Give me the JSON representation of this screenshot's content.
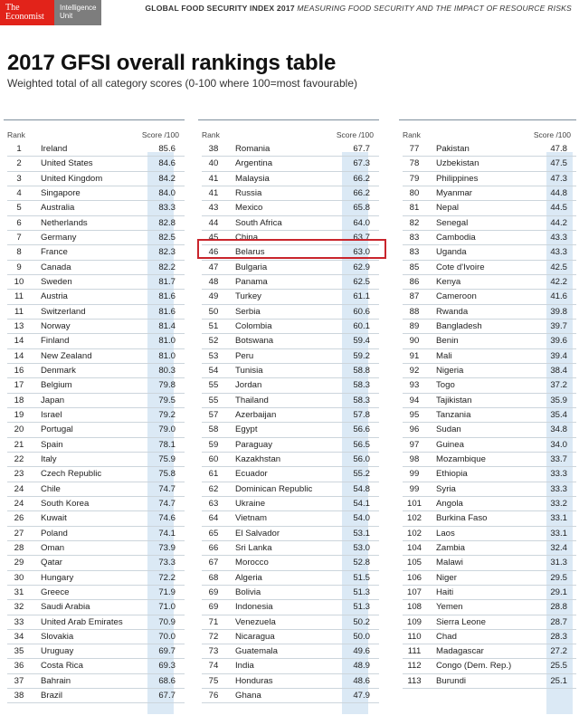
{
  "header": {
    "logo_primary_line1": "The",
    "logo_primary_line2": "Economist",
    "logo_secondary_line1": "Intelligence",
    "logo_secondary_line2": "Unit",
    "title_bold": "GLOBAL FOOD SECURITY INDEX 2017",
    "title_rest": "MEASURING FOOD SECURITY AND THE IMPACT OF RESOURCE RISKS"
  },
  "page_title": "2017 GFSI overall rankings table",
  "subtitle": "Weighted total of all category scores (0-100 where 100=most favourable)",
  "table_headers": {
    "rank": "Rank",
    "score": "Score /100"
  },
  "highlight_color": "#c9252c",
  "score_column_color": "#dbe9f5",
  "columns": [
    {
      "rows": [
        [
          "1",
          "Ireland",
          "85.6"
        ],
        [
          "2",
          "United States",
          "84.6"
        ],
        [
          "3",
          "United Kingdom",
          "84.2"
        ],
        [
          "4",
          "Singapore",
          "84.0"
        ],
        [
          "5",
          "Australia",
          "83.3"
        ],
        [
          "6",
          "Netherlands",
          "82.8"
        ],
        [
          "7",
          "Germany",
          "82.5"
        ],
        [
          "8",
          "France",
          "82.3"
        ],
        [
          "9",
          "Canada",
          "82.2"
        ],
        [
          "10",
          "Sweden",
          "81.7"
        ],
        [
          "11",
          "Austria",
          "81.6"
        ],
        [
          "11",
          "Switzerland",
          "81.6"
        ],
        [
          "13",
          "Norway",
          "81.4"
        ],
        [
          "14",
          "Finland",
          "81.0"
        ],
        [
          "14",
          "New Zealand",
          "81.0"
        ],
        [
          "16",
          "Denmark",
          "80.3"
        ],
        [
          "17",
          "Belgium",
          "79.8"
        ],
        [
          "18",
          "Japan",
          "79.5"
        ],
        [
          "19",
          "Israel",
          "79.2"
        ],
        [
          "20",
          "Portugal",
          "79.0"
        ],
        [
          "21",
          "Spain",
          "78.1"
        ],
        [
          "22",
          "Italy",
          "75.9"
        ],
        [
          "23",
          "Czech Republic",
          "75.8"
        ],
        [
          "24",
          "Chile",
          "74.7"
        ],
        [
          "24",
          "South Korea",
          "74.7"
        ],
        [
          "26",
          "Kuwait",
          "74.6"
        ],
        [
          "27",
          "Poland",
          "74.1"
        ],
        [
          "28",
          "Oman",
          "73.9"
        ],
        [
          "29",
          "Qatar",
          "73.3"
        ],
        [
          "30",
          "Hungary",
          "72.2"
        ],
        [
          "31",
          "Greece",
          "71.9"
        ],
        [
          "32",
          "Saudi Arabia",
          "71.0"
        ],
        [
          "33",
          "United Arab Emirates",
          "70.9"
        ],
        [
          "34",
          "Slovakia",
          "70.0"
        ],
        [
          "35",
          "Uruguay",
          "69.7"
        ],
        [
          "36",
          "Costa Rica",
          "69.3"
        ],
        [
          "37",
          "Bahrain",
          "68.6"
        ],
        [
          "38",
          "Brazil",
          "67.7"
        ]
      ]
    },
    {
      "rows": [
        [
          "38",
          "Romania",
          "67.7"
        ],
        [
          "40",
          "Argentina",
          "67.3"
        ],
        [
          "41",
          "Malaysia",
          "66.2"
        ],
        [
          "41",
          "Russia",
          "66.2"
        ],
        [
          "43",
          "Mexico",
          "65.8"
        ],
        [
          "44",
          "South Africa",
          "64.0"
        ],
        [
          "45",
          "China",
          "63.7"
        ],
        [
          "46",
          "Belarus",
          "63.0"
        ],
        [
          "47",
          "Bulgaria",
          "62.9"
        ],
        [
          "48",
          "Panama",
          "62.5"
        ],
        [
          "49",
          "Turkey",
          "61.1"
        ],
        [
          "50",
          "Serbia",
          "60.6"
        ],
        [
          "51",
          "Colombia",
          "60.1"
        ],
        [
          "52",
          "Botswana",
          "59.4"
        ],
        [
          "53",
          "Peru",
          "59.2"
        ],
        [
          "54",
          "Tunisia",
          "58.8"
        ],
        [
          "55",
          "Jordan",
          "58.3"
        ],
        [
          "55",
          "Thailand",
          "58.3"
        ],
        [
          "57",
          "Azerbaijan",
          "57.8"
        ],
        [
          "58",
          "Egypt",
          "56.6"
        ],
        [
          "59",
          "Paraguay",
          "56.5"
        ],
        [
          "60",
          "Kazakhstan",
          "56.0"
        ],
        [
          "61",
          "Ecuador",
          "55.2"
        ],
        [
          "62",
          "Dominican Republic",
          "54.8"
        ],
        [
          "63",
          "Ukraine",
          "54.1"
        ],
        [
          "64",
          "Vietnam",
          "54.0"
        ],
        [
          "65",
          "El Salvador",
          "53.1"
        ],
        [
          "66",
          "Sri Lanka",
          "53.0"
        ],
        [
          "67",
          "Morocco",
          "52.8"
        ],
        [
          "68",
          "Algeria",
          "51.5"
        ],
        [
          "69",
          "Bolivia",
          "51.3"
        ],
        [
          "69",
          "Indonesia",
          "51.3"
        ],
        [
          "71",
          "Venezuela",
          "50.2"
        ],
        [
          "72",
          "Nicaragua",
          "50.0"
        ],
        [
          "73",
          "Guatemala",
          "49.6"
        ],
        [
          "74",
          "India",
          "48.9"
        ],
        [
          "75",
          "Honduras",
          "48.6"
        ],
        [
          "76",
          "Ghana",
          "47.9"
        ]
      ]
    },
    {
      "rows": [
        [
          "77",
          "Pakistan",
          "47.8"
        ],
        [
          "78",
          "Uzbekistan",
          "47.5"
        ],
        [
          "79",
          "Philippines",
          "47.3"
        ],
        [
          "80",
          "Myanmar",
          "44.8"
        ],
        [
          "81",
          "Nepal",
          "44.5"
        ],
        [
          "82",
          "Senegal",
          "44.2"
        ],
        [
          "83",
          "Cambodia",
          "43.3"
        ],
        [
          "83",
          "Uganda",
          "43.3"
        ],
        [
          "85",
          "Cote d'Ivoire",
          "42.5"
        ],
        [
          "86",
          "Kenya",
          "42.2"
        ],
        [
          "87",
          "Cameroon",
          "41.6"
        ],
        [
          "88",
          "Rwanda",
          "39.8"
        ],
        [
          "89",
          "Bangladesh",
          "39.7"
        ],
        [
          "90",
          "Benin",
          "39.6"
        ],
        [
          "91",
          "Mali",
          "39.4"
        ],
        [
          "92",
          "Nigeria",
          "38.4"
        ],
        [
          "93",
          "Togo",
          "37.2"
        ],
        [
          "94",
          "Tajikistan",
          "35.9"
        ],
        [
          "95",
          "Tanzania",
          "35.4"
        ],
        [
          "96",
          "Sudan",
          "34.8"
        ],
        [
          "97",
          "Guinea",
          "34.0"
        ],
        [
          "98",
          "Mozambique",
          "33.7"
        ],
        [
          "99",
          "Ethiopia",
          "33.3"
        ],
        [
          "99",
          "Syria",
          "33.3"
        ],
        [
          "101",
          "Angola",
          "33.2"
        ],
        [
          "102",
          "Burkina Faso",
          "33.1"
        ],
        [
          "102",
          "Laos",
          "33.1"
        ],
        [
          "104",
          "Zambia",
          "32.4"
        ],
        [
          "105",
          "Malawi",
          "31.3"
        ],
        [
          "106",
          "Niger",
          "29.5"
        ],
        [
          "107",
          "Haiti",
          "29.1"
        ],
        [
          "108",
          "Yemen",
          "28.8"
        ],
        [
          "109",
          "Sierra Leone",
          "28.7"
        ],
        [
          "110",
          "Chad",
          "28.3"
        ],
        [
          "111",
          "Madagascar",
          "27.2"
        ],
        [
          "112",
          "Congo (Dem. Rep.)",
          "25.5"
        ],
        [
          "113",
          "Burundi",
          "25.1"
        ]
      ]
    }
  ]
}
